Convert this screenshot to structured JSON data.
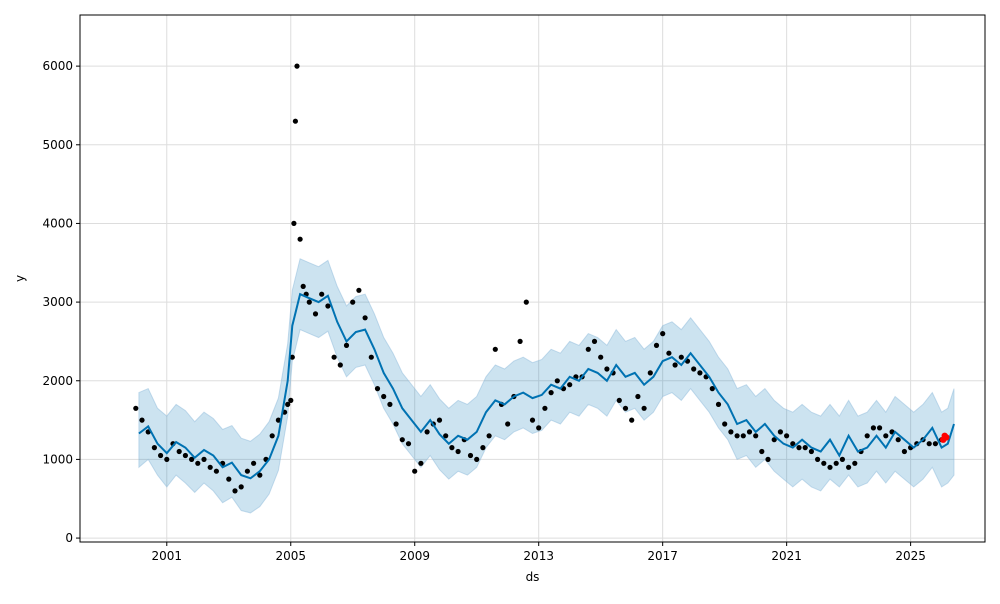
{
  "chart_data": {
    "type": "line",
    "title": "",
    "xlabel": "ds",
    "ylabel": "y",
    "x_ticks": [
      "2001",
      "2005",
      "2009",
      "2013",
      "2017",
      "2021",
      "2025"
    ],
    "x_tick_values": [
      2001,
      2005,
      2009,
      2013,
      2017,
      2021,
      2025
    ],
    "y_ticks": [
      "0",
      "1000",
      "2000",
      "3000",
      "4000",
      "5000",
      "6000"
    ],
    "y_tick_values": [
      0,
      1000,
      2000,
      3000,
      4000,
      5000,
      6000
    ],
    "xlim": [
      1998.2,
      2027.4
    ],
    "ylim": [
      -50,
      6650
    ],
    "grid": true,
    "legend": "none",
    "colors": {
      "observed": "#000000",
      "forecast": "#0072b2",
      "uncertainty": "#0072b2",
      "highlight": "#ff0000"
    },
    "series": [
      {
        "role": "forecast",
        "x": [
          2000.1,
          2000.4,
          2000.7,
          2001.0,
          2001.3,
          2001.6,
          2001.9,
          2002.2,
          2002.5,
          2002.8,
          2003.1,
          2003.4,
          2003.7,
          2004.0,
          2004.3,
          2004.6,
          2004.9,
          2005.05,
          2005.3,
          2005.6,
          2005.9,
          2006.2,
          2006.5,
          2006.8,
          2007.1,
          2007.4,
          2007.7,
          2008.0,
          2008.3,
          2008.6,
          2008.9,
          2009.2,
          2009.5,
          2009.8,
          2010.1,
          2010.4,
          2010.7,
          2011.0,
          2011.3,
          2011.6,
          2011.9,
          2012.2,
          2012.5,
          2012.8,
          2013.1,
          2013.4,
          2013.7,
          2014.0,
          2014.3,
          2014.6,
          2014.9,
          2015.2,
          2015.5,
          2015.8,
          2016.1,
          2016.4,
          2016.7,
          2017.0,
          2017.3,
          2017.6,
          2017.9,
          2018.2,
          2018.5,
          2018.8,
          2019.1,
          2019.4,
          2019.7,
          2020.0,
          2020.3,
          2020.6,
          2020.9,
          2021.2,
          2021.5,
          2021.8,
          2022.1,
          2022.4,
          2022.7,
          2023.0,
          2023.3,
          2023.6,
          2023.9,
          2024.2,
          2024.5,
          2024.8,
          2025.1,
          2025.4,
          2025.7,
          2026.0,
          2026.2,
          2026.4
        ],
        "y": [
          1330,
          1420,
          1200,
          1080,
          1220,
          1150,
          1020,
          1120,
          1050,
          900,
          960,
          800,
          760,
          850,
          1000,
          1300,
          2000,
          2700,
          3100,
          3050,
          3000,
          3080,
          2750,
          2500,
          2620,
          2650,
          2400,
          2100,
          1900,
          1650,
          1500,
          1350,
          1500,
          1320,
          1200,
          1300,
          1250,
          1350,
          1600,
          1750,
          1700,
          1800,
          1850,
          1780,
          1820,
          1950,
          1900,
          2050,
          2000,
          2150,
          2100,
          2000,
          2200,
          2050,
          2100,
          1950,
          2050,
          2250,
          2300,
          2200,
          2350,
          2200,
          2050,
          1850,
          1700,
          1450,
          1500,
          1350,
          1450,
          1300,
          1200,
          1150,
          1250,
          1150,
          1100,
          1250,
          1050,
          1300,
          1100,
          1150,
          1300,
          1150,
          1350,
          1250,
          1150,
          1250,
          1400,
          1150,
          1200,
          1450
        ]
      },
      {
        "role": "uncertainty",
        "x": [
          2000.1,
          2000.4,
          2000.7,
          2001.0,
          2001.3,
          2001.6,
          2001.9,
          2002.2,
          2002.5,
          2002.8,
          2003.1,
          2003.4,
          2003.7,
          2004.0,
          2004.3,
          2004.6,
          2004.9,
          2005.05,
          2005.3,
          2005.6,
          2005.9,
          2006.2,
          2006.5,
          2006.8,
          2007.1,
          2007.4,
          2007.7,
          2008.0,
          2008.3,
          2008.6,
          2008.9,
          2009.2,
          2009.5,
          2009.8,
          2010.1,
          2010.4,
          2010.7,
          2011.0,
          2011.3,
          2011.6,
          2011.9,
          2012.2,
          2012.5,
          2012.8,
          2013.1,
          2013.4,
          2013.7,
          2014.0,
          2014.3,
          2014.6,
          2014.9,
          2015.2,
          2015.5,
          2015.8,
          2016.1,
          2016.4,
          2016.7,
          2017.0,
          2017.3,
          2017.6,
          2017.9,
          2018.2,
          2018.5,
          2018.8,
          2019.1,
          2019.4,
          2019.7,
          2020.0,
          2020.3,
          2020.6,
          2020.9,
          2021.2,
          2021.5,
          2021.8,
          2022.1,
          2022.4,
          2022.7,
          2023.0,
          2023.3,
          2023.6,
          2023.9,
          2024.2,
          2024.5,
          2024.8,
          2025.1,
          2025.4,
          2025.7,
          2026.0,
          2026.2,
          2026.4
        ],
        "lower": [
          900,
          1000,
          800,
          650,
          800,
          700,
          580,
          700,
          600,
          450,
          520,
          350,
          320,
          400,
          560,
          860,
          1550,
          2250,
          2650,
          2600,
          2550,
          2630,
          2300,
          2050,
          2170,
          2200,
          1950,
          1650,
          1450,
          1200,
          1050,
          900,
          1050,
          870,
          750,
          850,
          800,
          900,
          1150,
          1300,
          1250,
          1350,
          1400,
          1330,
          1370,
          1500,
          1450,
          1600,
          1550,
          1700,
          1650,
          1550,
          1750,
          1600,
          1650,
          1500,
          1600,
          1800,
          1850,
          1750,
          1900,
          1750,
          1600,
          1400,
          1250,
          1000,
          1050,
          900,
          1000,
          850,
          750,
          650,
          750,
          650,
          600,
          750,
          650,
          800,
          650,
          700,
          850,
          700,
          850,
          750,
          650,
          750,
          900,
          650,
          700,
          800
        ],
        "upper": [
          1850,
          1900,
          1650,
          1550,
          1700,
          1620,
          1480,
          1600,
          1520,
          1380,
          1430,
          1270,
          1230,
          1320,
          1480,
          1780,
          2470,
          3150,
          3550,
          3500,
          3450,
          3530,
          3200,
          2950,
          3070,
          3100,
          2850,
          2550,
          2350,
          2100,
          1950,
          1800,
          1950,
          1770,
          1650,
          1750,
          1700,
          1800,
          2050,
          2200,
          2150,
          2250,
          2300,
          2230,
          2270,
          2400,
          2350,
          2500,
          2450,
          2600,
          2550,
          2450,
          2650,
          2500,
          2550,
          2400,
          2500,
          2700,
          2750,
          2650,
          2800,
          2650,
          2500,
          2300,
          2150,
          1900,
          1950,
          1800,
          1900,
          1750,
          1650,
          1600,
          1700,
          1600,
          1550,
          1700,
          1550,
          1750,
          1550,
          1600,
          1750,
          1600,
          1800,
          1700,
          1600,
          1700,
          1850,
          1600,
          1650,
          1900
        ]
      },
      {
        "role": "observed",
        "x": [
          2000.0,
          2000.2,
          2000.4,
          2000.6,
          2000.8,
          2001.0,
          2001.2,
          2001.4,
          2001.6,
          2001.8,
          2002.0,
          2002.2,
          2002.4,
          2002.6,
          2002.8,
          2003.0,
          2003.2,
          2003.4,
          2003.6,
          2003.8,
          2004.0,
          2004.2,
          2004.4,
          2004.6,
          2004.8,
          2004.9,
          2005.0,
          2005.05,
          2005.1,
          2005.15,
          2005.2,
          2005.3,
          2005.4,
          2005.5,
          2005.6,
          2005.8,
          2006.0,
          2006.2,
          2006.4,
          2006.6,
          2006.8,
          2007.0,
          2007.2,
          2007.4,
          2007.6,
          2007.8,
          2008.0,
          2008.2,
          2008.4,
          2008.6,
          2008.8,
          2009.0,
          2009.2,
          2009.4,
          2009.6,
          2009.8,
          2010.0,
          2010.2,
          2010.4,
          2010.6,
          2010.8,
          2011.0,
          2011.2,
          2011.4,
          2011.6,
          2011.8,
          2012.0,
          2012.2,
          2012.4,
          2012.6,
          2012.8,
          2013.0,
          2013.2,
          2013.4,
          2013.6,
          2013.8,
          2014.0,
          2014.2,
          2014.4,
          2014.6,
          2014.8,
          2015.0,
          2015.2,
          2015.4,
          2015.6,
          2015.8,
          2016.0,
          2016.2,
          2016.4,
          2016.6,
          2016.8,
          2017.0,
          2017.2,
          2017.4,
          2017.6,
          2017.8,
          2018.0,
          2018.2,
          2018.4,
          2018.6,
          2018.8,
          2019.0,
          2019.2,
          2019.4,
          2019.6,
          2019.8,
          2020.0,
          2020.2,
          2020.4,
          2020.6,
          2020.8,
          2021.0,
          2021.2,
          2021.4,
          2021.6,
          2021.8,
          2022.0,
          2022.2,
          2022.4,
          2022.6,
          2022.8,
          2023.0,
          2023.2,
          2023.4,
          2023.6,
          2023.8,
          2024.0,
          2024.2,
          2024.4,
          2024.6,
          2024.8,
          2025.0,
          2025.2,
          2025.4,
          2025.6,
          2025.8,
          2026.0
        ],
        "y": [
          1650,
          1500,
          1350,
          1150,
          1050,
          1000,
          1200,
          1100,
          1050,
          1000,
          950,
          1000,
          900,
          850,
          950,
          750,
          600,
          650,
          850,
          950,
          800,
          1000,
          1300,
          1500,
          1600,
          1700,
          1750,
          2300,
          4000,
          5300,
          6000,
          3800,
          3200,
          3100,
          3000,
          2850,
          3100,
          2950,
          2300,
          2200,
          2450,
          3000,
          3150,
          2800,
          2300,
          1900,
          1800,
          1700,
          1450,
          1250,
          1200,
          850,
          950,
          1350,
          1450,
          1500,
          1300,
          1150,
          1100,
          1250,
          1050,
          1000,
          1150,
          1300,
          2400,
          1700,
          1450,
          1800,
          2500,
          3000,
          1500,
          1400,
          1650,
          1850,
          2000,
          1900,
          1950,
          2050,
          2050,
          2400,
          2500,
          2300,
          2150,
          2100,
          1750,
          1650,
          1500,
          1800,
          1650,
          2100,
          2450,
          2600,
          2350,
          2200,
          2300,
          2250,
          2150,
          2100,
          2050,
          1900,
          1700,
          1450,
          1350,
          1300,
          1300,
          1350,
          1300,
          1100,
          1000,
          1250,
          1350,
          1300,
          1200,
          1150,
          1150,
          1100,
          1000,
          950,
          900,
          950,
          1000,
          900,
          950,
          1100,
          1300,
          1400,
          1400,
          1300,
          1350,
          1250,
          1100,
          1150,
          1200,
          1250,
          1200,
          1200,
          1250
        ]
      },
      {
        "role": "highlight",
        "x": [
          2026.05,
          2026.1,
          2026.15
        ],
        "y": [
          1250,
          1300,
          1280
        ]
      }
    ]
  }
}
